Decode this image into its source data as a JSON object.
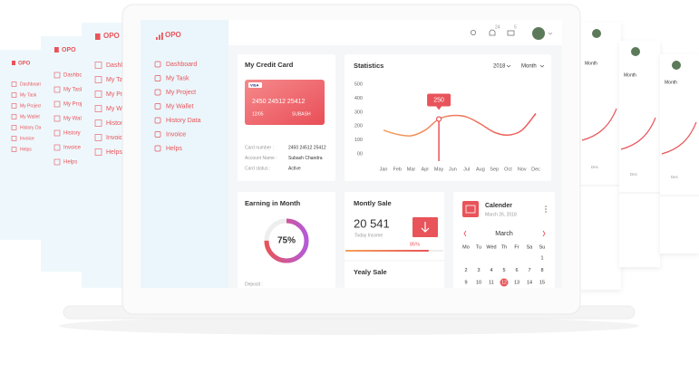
{
  "sidebar": {
    "logo": "OPO",
    "nav": [
      "Dashboard",
      "My Task",
      "My Project",
      "My Wallet",
      "History Data",
      "Invoice",
      "Helps"
    ]
  },
  "header": {
    "notifications": "24",
    "messages": "5"
  },
  "credit_card": {
    "title": "My Credit Card",
    "brand": "VISA",
    "number": "2450  24512  25412",
    "expiry": "12/05",
    "holder": "SUBASH",
    "details": [
      {
        "label": "Card number :",
        "value": "2450 24512 25412"
      },
      {
        "label": "Account Name :",
        "value": "Subash Chandra"
      },
      {
        "label": "Card status :",
        "value": "Active"
      }
    ]
  },
  "chart_data": {
    "type": "line",
    "title": "Statistics",
    "year": "2018",
    "period": "Month",
    "categories": [
      "Jan",
      "Feb",
      "Mar",
      "Apr",
      "May",
      "Jun",
      "Jul",
      "Aug",
      "Sep",
      "Oct",
      "Nov",
      "Dec"
    ],
    "values": [
      170,
      140,
      130,
      170,
      250,
      275,
      265,
      215,
      155,
      135,
      170,
      290
    ],
    "value_labels": [
      null,
      null,
      null,
      null,
      "250",
      null,
      null,
      null,
      null,
      null,
      null,
      null
    ],
    "color": "#e8545a",
    "ylim": [
      0,
      500
    ],
    "yticks": [
      {
        "value": 0,
        "label": "00"
      },
      100,
      200,
      300,
      400,
      500
    ],
    "grid": false
  },
  "earning": {
    "title": "Earning in Month",
    "value": 75,
    "value_label": "75%",
    "deposit": "Deposit :"
  },
  "monthly_sale": {
    "title": "Montly Sale",
    "amount": "20 541",
    "subtitle": "Today Income",
    "progress": 85,
    "progress_label": "85%"
  },
  "yearly_sale": {
    "title": "Yealy Sale"
  },
  "calendar": {
    "title": "Calender",
    "date": "March 26, 2018",
    "month": "March",
    "weekdays": [
      "Mo",
      "Tu",
      "Wed",
      "Th",
      "Fr",
      "Sa",
      "Su"
    ],
    "weeks": [
      [
        null,
        null,
        null,
        null,
        null,
        null,
        "1"
      ],
      [
        "2",
        "3",
        "4",
        "5",
        "6",
        "7",
        "8"
      ],
      [
        "9",
        "10",
        "11",
        "12",
        "13",
        "14",
        "15"
      ]
    ],
    "highlighted": "12"
  }
}
